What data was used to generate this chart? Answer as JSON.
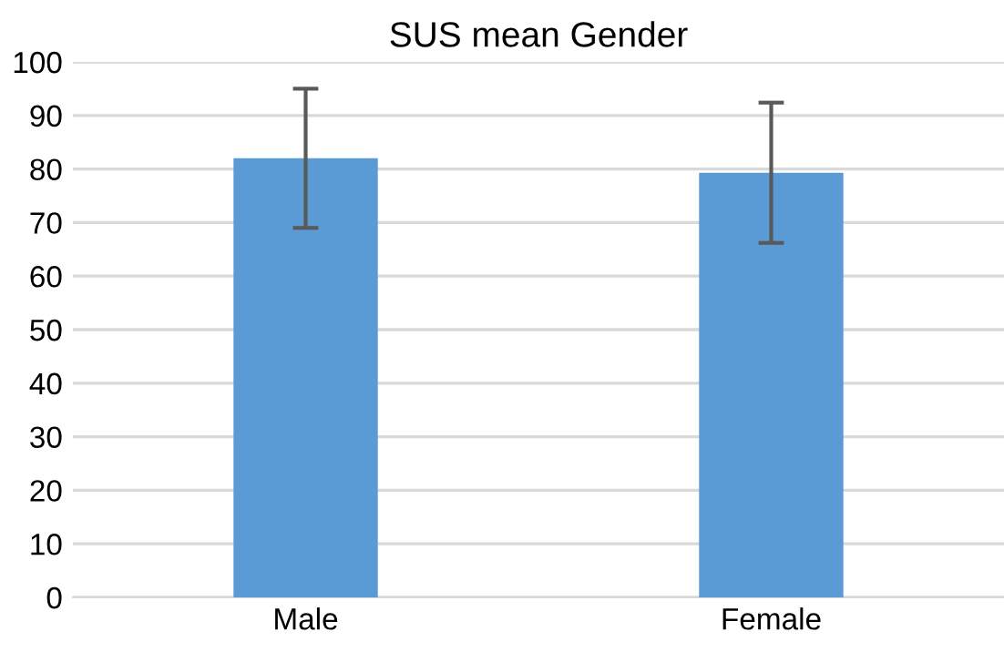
{
  "chart_data": {
    "type": "bar",
    "title": "SUS mean Gender",
    "categories": [
      "Male",
      "Female"
    ],
    "values": [
      82,
      79.3
    ],
    "errors": [
      13,
      13.1
    ],
    "color": "#5b9bd5",
    "ylim": [
      0,
      100
    ],
    "yticks": [
      0,
      10,
      20,
      30,
      40,
      50,
      60,
      70,
      80,
      90,
      100
    ],
    "grid": "y",
    "legend": false
  }
}
